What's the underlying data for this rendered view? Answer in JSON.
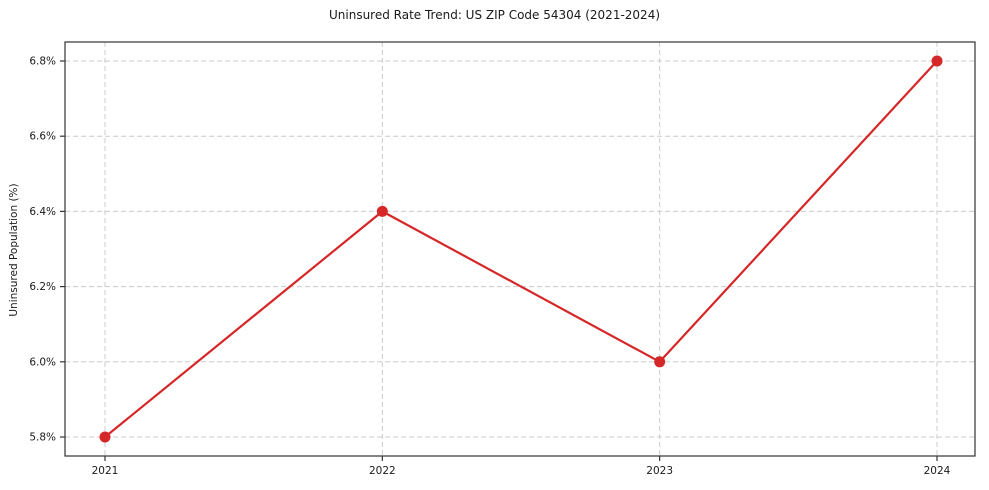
{
  "chart_data": {
    "type": "line",
    "title": "Uninsured Rate Trend: US ZIP Code 54304 (2021-2024)",
    "xlabel": "",
    "ylabel": "Uninsured Population (%)",
    "x": [
      2021,
      2022,
      2023,
      2024
    ],
    "values": [
      5.8,
      6.4,
      6.0,
      6.8
    ],
    "x_tick_labels": [
      "2021",
      "2022",
      "2023",
      "2024"
    ],
    "y_ticks": [
      5.8,
      6.0,
      6.2,
      6.4,
      6.6,
      6.8
    ],
    "y_tick_labels": [
      "5.8%",
      "6.0%",
      "6.2%",
      "6.4%",
      "6.6%",
      "6.8%"
    ],
    "xlim": [
      2020.8558,
      2024.137
    ],
    "ylim": [
      5.7495,
      6.8505
    ],
    "grid": true,
    "grid_style": "dashed",
    "legend": false,
    "marker": "circle",
    "colors": {
      "line": "#d62728",
      "marker": "#d62728",
      "grid": "#cccccc",
      "spine": "#333333",
      "tick": "#333333",
      "text": "#1a1a1a",
      "background": "#ffffff"
    }
  }
}
